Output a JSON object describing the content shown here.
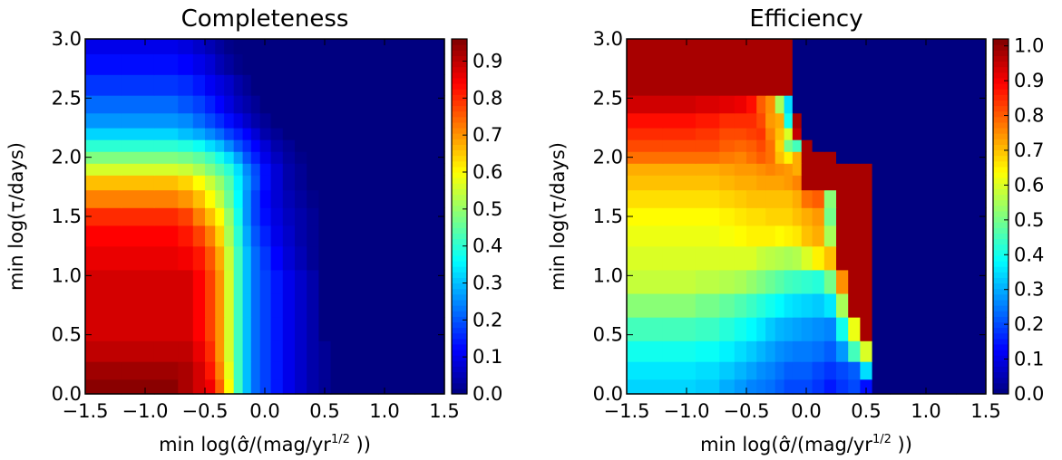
{
  "chart_data": [
    {
      "type": "heatmap",
      "title": "Completeness",
      "xlabel": "min log(σ̂/(mag/yr^{1/2} ))",
      "ylabel": "min log(τ/days)",
      "xlim": [
        -1.5,
        1.5
      ],
      "ylim": [
        0.0,
        3.0
      ],
      "xticks": [
        "−1.5",
        "−1.0",
        "−0.5",
        "0.0",
        "0.5",
        "1.0",
        "1.5"
      ],
      "yticks": [
        "0.0",
        "0.5",
        "1.0",
        "1.5",
        "2.0",
        "2.5",
        "3.0"
      ],
      "colorbar": {
        "range": [
          0.0,
          0.96
        ],
        "ticks": [
          "0.0",
          "0.1",
          "0.2",
          "0.3",
          "0.4",
          "0.5",
          "0.6",
          "0.7",
          "0.8",
          "0.9"
        ]
      },
      "colormap": "jet",
      "grid": false,
      "x_centers": [
        -1.35,
        -1.05,
        -0.8,
        -0.65,
        -0.55,
        -0.45,
        -0.38,
        -0.3,
        -0.22,
        -0.15,
        -0.08,
        0.0,
        0.1,
        0.2,
        0.3,
        0.4,
        0.5,
        0.6,
        0.8,
        1.1,
        1.4
      ],
      "y_centers": [
        0.05,
        0.2,
        0.35,
        0.55,
        0.75,
        0.95,
        1.15,
        1.35,
        1.5,
        1.65,
        1.8,
        1.9,
        2.0,
        2.1,
        2.2,
        2.3,
        2.45,
        2.6,
        2.8,
        2.95
      ],
      "values": [
        [
          0.95,
          0.95,
          0.95,
          0.92,
          0.88,
          0.85,
          0.75,
          0.6,
          0.42,
          0.3,
          0.22,
          0.18,
          0.14,
          0.1,
          0.07,
          0.04,
          0.02,
          0.0,
          0.0,
          0.0,
          0.0
        ],
        [
          0.93,
          0.93,
          0.93,
          0.92,
          0.88,
          0.82,
          0.72,
          0.58,
          0.42,
          0.3,
          0.22,
          0.18,
          0.14,
          0.1,
          0.07,
          0.04,
          0.02,
          0.0,
          0.0,
          0.0,
          0.0
        ],
        [
          0.9,
          0.9,
          0.9,
          0.9,
          0.86,
          0.8,
          0.7,
          0.56,
          0.42,
          0.3,
          0.22,
          0.18,
          0.14,
          0.1,
          0.07,
          0.04,
          0.02,
          0.0,
          0.0,
          0.0,
          0.0
        ],
        [
          0.88,
          0.88,
          0.88,
          0.88,
          0.84,
          0.78,
          0.7,
          0.56,
          0.42,
          0.3,
          0.22,
          0.18,
          0.14,
          0.1,
          0.07,
          0.04,
          0.0,
          0.0,
          0.0,
          0.0,
          0.0
        ],
        [
          0.88,
          0.88,
          0.88,
          0.88,
          0.84,
          0.78,
          0.7,
          0.56,
          0.42,
          0.3,
          0.22,
          0.18,
          0.14,
          0.1,
          0.07,
          0.04,
          0.0,
          0.0,
          0.0,
          0.0,
          0.0
        ],
        [
          0.88,
          0.88,
          0.88,
          0.88,
          0.84,
          0.78,
          0.7,
          0.56,
          0.42,
          0.3,
          0.22,
          0.18,
          0.14,
          0.1,
          0.07,
          0.04,
          0.0,
          0.0,
          0.0,
          0.0,
          0.0
        ],
        [
          0.86,
          0.86,
          0.86,
          0.85,
          0.82,
          0.76,
          0.68,
          0.55,
          0.42,
          0.3,
          0.22,
          0.17,
          0.12,
          0.08,
          0.05,
          0.02,
          0.0,
          0.0,
          0.0,
          0.0,
          0.0
        ],
        [
          0.84,
          0.84,
          0.84,
          0.82,
          0.78,
          0.72,
          0.64,
          0.52,
          0.4,
          0.28,
          0.2,
          0.15,
          0.1,
          0.07,
          0.04,
          0.02,
          0.0,
          0.0,
          0.0,
          0.0,
          0.0
        ],
        [
          0.8,
          0.8,
          0.8,
          0.78,
          0.72,
          0.66,
          0.6,
          0.5,
          0.38,
          0.26,
          0.18,
          0.13,
          0.09,
          0.06,
          0.04,
          0.02,
          0.0,
          0.0,
          0.0,
          0.0,
          0.0
        ],
        [
          0.72,
          0.72,
          0.72,
          0.7,
          0.66,
          0.6,
          0.54,
          0.46,
          0.36,
          0.26,
          0.18,
          0.12,
          0.08,
          0.05,
          0.03,
          0.01,
          0.0,
          0.0,
          0.0,
          0.0,
          0.0
        ],
        [
          0.66,
          0.66,
          0.66,
          0.64,
          0.6,
          0.55,
          0.5,
          0.44,
          0.35,
          0.27,
          0.2,
          0.13,
          0.08,
          0.04,
          0.02,
          0.0,
          0.0,
          0.0,
          0.0,
          0.0,
          0.0
        ],
        [
          0.56,
          0.56,
          0.56,
          0.55,
          0.52,
          0.48,
          0.44,
          0.4,
          0.33,
          0.25,
          0.19,
          0.13,
          0.08,
          0.04,
          0.02,
          0.0,
          0.0,
          0.0,
          0.0,
          0.0,
          0.0
        ],
        [
          0.48,
          0.48,
          0.48,
          0.47,
          0.45,
          0.42,
          0.38,
          0.33,
          0.27,
          0.2,
          0.15,
          0.1,
          0.06,
          0.03,
          0.01,
          0.0,
          0.0,
          0.0,
          0.0,
          0.0,
          0.0
        ],
        [
          0.4,
          0.4,
          0.4,
          0.39,
          0.37,
          0.33,
          0.3,
          0.25,
          0.2,
          0.16,
          0.12,
          0.08,
          0.04,
          0.02,
          0.0,
          0.0,
          0.0,
          0.0,
          0.0,
          0.0,
          0.0
        ],
        [
          0.32,
          0.32,
          0.32,
          0.3,
          0.28,
          0.25,
          0.22,
          0.18,
          0.15,
          0.12,
          0.08,
          0.04,
          0.02,
          0.0,
          0.0,
          0.0,
          0.0,
          0.0,
          0.0,
          0.0,
          0.0
        ],
        [
          0.26,
          0.26,
          0.26,
          0.25,
          0.22,
          0.19,
          0.16,
          0.13,
          0.1,
          0.07,
          0.04,
          0.02,
          0.0,
          0.0,
          0.0,
          0.0,
          0.0,
          0.0,
          0.0,
          0.0,
          0.0
        ],
        [
          0.22,
          0.22,
          0.22,
          0.2,
          0.18,
          0.15,
          0.12,
          0.09,
          0.06,
          0.04,
          0.02,
          0.0,
          0.0,
          0.0,
          0.0,
          0.0,
          0.0,
          0.0,
          0.0,
          0.0,
          0.0
        ],
        [
          0.17,
          0.17,
          0.17,
          0.16,
          0.14,
          0.11,
          0.09,
          0.07,
          0.04,
          0.02,
          0.0,
          0.0,
          0.0,
          0.0,
          0.0,
          0.0,
          0.0,
          0.0,
          0.0,
          0.0,
          0.0
        ],
        [
          0.13,
          0.13,
          0.13,
          0.12,
          0.1,
          0.08,
          0.05,
          0.03,
          0.01,
          0.0,
          0.0,
          0.0,
          0.0,
          0.0,
          0.0,
          0.0,
          0.0,
          0.0,
          0.0,
          0.0,
          0.0
        ],
        [
          0.1,
          0.1,
          0.1,
          0.09,
          0.07,
          0.05,
          0.03,
          0.01,
          0.0,
          0.0,
          0.0,
          0.0,
          0.0,
          0.0,
          0.0,
          0.0,
          0.0,
          0.0,
          0.0,
          0.0,
          0.0
        ]
      ]
    },
    {
      "type": "heatmap",
      "title": "Efficiency",
      "xlabel": "min log(σ̂/(mag/yr^{1/2} ))",
      "ylabel": "min log(τ/days)",
      "xlim": [
        -1.5,
        1.5
      ],
      "ylim": [
        0.0,
        3.0
      ],
      "xticks": [
        "−1.5",
        "−1.0",
        "−0.5",
        "0.0",
        "0.5",
        "1.0",
        "1.5"
      ],
      "yticks": [
        "0.0",
        "0.5",
        "1.0",
        "1.5",
        "2.0",
        "2.5",
        "3.0"
      ],
      "colorbar": {
        "range": [
          0.0,
          1.02
        ],
        "ticks": [
          "0.0",
          "0.1",
          "0.2",
          "0.3",
          "0.4",
          "0.5",
          "0.6",
          "0.7",
          "0.8",
          "0.9",
          "1.0"
        ]
      },
      "colormap": "jet",
      "grid": false,
      "x_centers": [
        -1.35,
        -1.05,
        -0.8,
        -0.65,
        -0.55,
        -0.45,
        -0.38,
        -0.3,
        -0.22,
        -0.15,
        -0.08,
        0.0,
        0.1,
        0.2,
        0.3,
        0.4,
        0.5,
        0.6,
        0.8,
        1.1,
        1.4
      ],
      "y_centers": [
        0.05,
        0.2,
        0.35,
        0.55,
        0.75,
        0.95,
        1.15,
        1.35,
        1.5,
        1.65,
        1.8,
        1.9,
        2.0,
        2.1,
        2.2,
        2.3,
        2.45,
        2.6,
        2.8,
        2.95
      ],
      "values": [
        [
          0.34,
          0.34,
          0.33,
          0.3,
          0.28,
          0.26,
          0.25,
          0.24,
          0.22,
          0.2,
          0.2,
          0.2,
          0.18,
          0.15,
          0.18,
          0.2,
          0.14,
          0.0,
          0.0,
          0.0,
          0.0
        ],
        [
          0.36,
          0.36,
          0.35,
          0.33,
          0.31,
          0.29,
          0.27,
          0.26,
          0.24,
          0.22,
          0.22,
          0.22,
          0.2,
          0.18,
          0.2,
          0.22,
          0.35,
          0.0,
          0.0,
          0.0,
          0.0
        ],
        [
          0.4,
          0.4,
          0.39,
          0.37,
          0.35,
          0.33,
          0.31,
          0.29,
          0.27,
          0.26,
          0.25,
          0.25,
          0.24,
          0.22,
          0.28,
          0.45,
          0.6,
          0.0,
          0.0,
          0.0,
          0.0
        ],
        [
          0.45,
          0.45,
          0.44,
          0.42,
          0.4,
          0.38,
          0.36,
          0.33,
          0.31,
          0.3,
          0.29,
          0.28,
          0.27,
          0.26,
          0.4,
          0.62,
          0.98,
          0.0,
          0.0,
          0.0,
          0.0
        ],
        [
          0.52,
          0.52,
          0.5,
          0.48,
          0.46,
          0.44,
          0.42,
          0.4,
          0.38,
          0.36,
          0.35,
          0.34,
          0.33,
          0.36,
          0.55,
          0.98,
          0.98,
          0.0,
          0.0,
          0.0,
          0.0
        ],
        [
          0.58,
          0.58,
          0.57,
          0.56,
          0.55,
          0.53,
          0.51,
          0.49,
          0.47,
          0.45,
          0.44,
          0.43,
          0.42,
          0.5,
          0.75,
          0.98,
          0.98,
          0.0,
          0.0,
          0.0,
          0.0
        ],
        [
          0.6,
          0.6,
          0.6,
          0.6,
          0.6,
          0.6,
          0.58,
          0.57,
          0.56,
          0.55,
          0.56,
          0.6,
          0.65,
          0.7,
          0.98,
          0.98,
          0.98,
          0.0,
          0.0,
          0.0,
          0.0
        ],
        [
          0.62,
          0.62,
          0.62,
          0.63,
          0.64,
          0.65,
          0.65,
          0.65,
          0.64,
          0.65,
          0.66,
          0.7,
          0.72,
          0.55,
          0.98,
          0.98,
          0.98,
          0.0,
          0.0,
          0.0,
          0.0
        ],
        [
          0.64,
          0.64,
          0.64,
          0.65,
          0.66,
          0.67,
          0.67,
          0.68,
          0.68,
          0.68,
          0.7,
          0.72,
          0.74,
          0.5,
          0.98,
          0.98,
          0.98,
          0.0,
          0.0,
          0.0,
          0.0
        ],
        [
          0.67,
          0.67,
          0.67,
          0.68,
          0.69,
          0.7,
          0.7,
          0.7,
          0.7,
          0.7,
          0.72,
          0.78,
          0.8,
          0.52,
          0.98,
          0.98,
          0.98,
          0.0,
          0.0,
          0.0,
          0.0
        ],
        [
          0.7,
          0.7,
          0.7,
          0.71,
          0.72,
          0.72,
          0.73,
          0.73,
          0.73,
          0.74,
          0.76,
          0.98,
          0.98,
          0.98,
          0.98,
          0.98,
          0.98,
          0.0,
          0.0,
          0.0,
          0.0
        ],
        [
          0.72,
          0.72,
          0.72,
          0.73,
          0.74,
          0.74,
          0.75,
          0.76,
          0.75,
          0.74,
          0.72,
          0.98,
          0.98,
          0.98,
          0.98,
          0.98,
          0.98,
          0.0,
          0.0,
          0.0,
          0.0
        ],
        [
          0.78,
          0.78,
          0.78,
          0.77,
          0.76,
          0.78,
          0.8,
          0.78,
          0.7,
          0.65,
          0.72,
          0.98,
          0.98,
          0.98,
          0.0,
          0.0,
          0.0,
          0.0,
          0.0,
          0.0,
          0.0
        ],
        [
          0.82,
          0.82,
          0.82,
          0.8,
          0.79,
          0.8,
          0.82,
          0.78,
          0.68,
          0.5,
          0.45,
          0.98,
          0.0,
          0.0,
          0.0,
          0.0,
          0.0,
          0.0,
          0.0,
          0.0,
          0.0
        ],
        [
          0.85,
          0.85,
          0.84,
          0.82,
          0.82,
          0.83,
          0.84,
          0.76,
          0.7,
          0.6,
          0.95,
          0.0,
          0.0,
          0.0,
          0.0,
          0.0,
          0.0,
          0.0,
          0.0,
          0.0,
          0.0
        ],
        [
          0.88,
          0.88,
          0.87,
          0.85,
          0.85,
          0.85,
          0.82,
          0.74,
          0.72,
          0.4,
          0.98,
          0.0,
          0.0,
          0.0,
          0.0,
          0.0,
          0.0,
          0.0,
          0.0,
          0.0,
          0.0
        ],
        [
          0.94,
          0.94,
          0.93,
          0.92,
          0.91,
          0.88,
          0.8,
          0.75,
          0.55,
          0.35,
          0.0,
          0.0,
          0.0,
          0.0,
          0.0,
          0.0,
          0.0,
          0.0,
          0.0,
          0.0,
          0.0
        ],
        [
          0.98,
          0.98,
          0.98,
          0.98,
          0.98,
          0.98,
          0.98,
          0.98,
          0.98,
          0.98,
          0.0,
          0.0,
          0.0,
          0.0,
          0.0,
          0.0,
          0.0,
          0.0,
          0.0,
          0.0,
          0.0
        ],
        [
          0.98,
          0.98,
          0.98,
          0.98,
          0.98,
          0.98,
          0.98,
          0.98,
          0.98,
          0.98,
          0.0,
          0.0,
          0.0,
          0.0,
          0.0,
          0.0,
          0.0,
          0.0,
          0.0,
          0.0,
          0.0
        ],
        [
          0.98,
          0.98,
          0.98,
          0.98,
          0.98,
          0.98,
          0.98,
          0.98,
          0.98,
          0.98,
          0.0,
          0.0,
          0.0,
          0.0,
          0.0,
          0.0,
          0.0,
          0.0,
          0.0,
          0.0,
          0.0
        ]
      ]
    }
  ]
}
